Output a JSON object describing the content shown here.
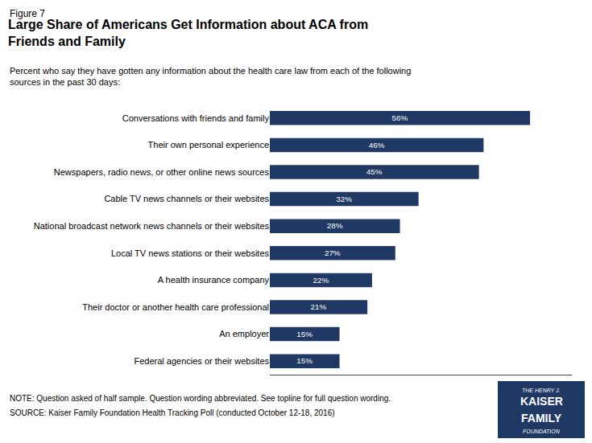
{
  "chart_data": {
    "type": "bar",
    "orientation": "horizontal",
    "figure_label": "Figure 7",
    "title": "Large Share of Americans Get Information about ACA from\nFriends and Family",
    "subtitle": "Percent who say they have gotten any information about the health care law from each of the following\nsources in the past 30 days:",
    "categories": [
      "Federal agencies or their websites",
      "An employer",
      "Their doctor or another health care professional",
      "A health insurance company",
      "Local TV news stations or their websites",
      "National broadcast network news channels or their websites",
      "Cable TV news channels or their websites",
      "Newspapers, radio news, or other online news sources",
      "Their own personal experience",
      "Conversations with friends and family"
    ],
    "values": [
      15,
      15,
      21,
      22,
      27,
      28,
      32,
      45,
      46,
      56
    ],
    "value_labels": [
      "15%",
      "15%",
      "21%",
      "22%",
      "27%",
      "28%",
      "32%",
      "45%",
      "46%",
      "56%"
    ],
    "data_labels": true,
    "color": "#1f3864",
    "xlim": [
      0,
      65
    ],
    "tick_labels": "y",
    "grid": false,
    "notes": [
      "NOTE: Question asked of half sample. Question wording abbreviated. See topline for full question wording.",
      "SOURCE: Kaiser Family Foundation Health Tracking Poll (conducted October 12-18, 2016)"
    ],
    "logo": [
      "THE HENRY J.",
      "KAISER",
      "FAMILY",
      "FOUNDATION"
    ]
  }
}
